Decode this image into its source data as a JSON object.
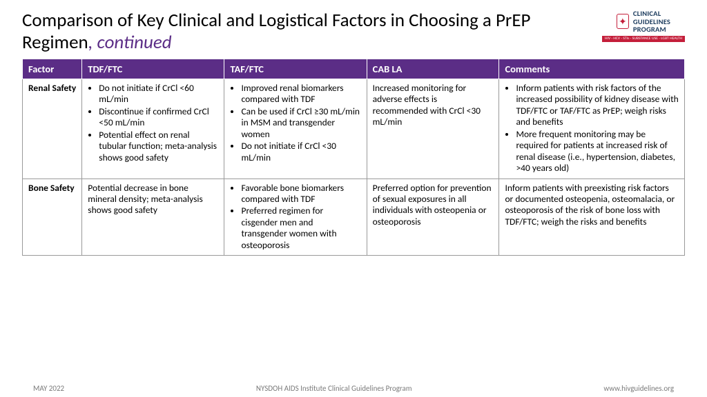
{
  "title_main": "Comparison of Key Clinical and Logistical Factors in Choosing a PrEP Regimen",
  "title_suffix": ", continued",
  "logo": {
    "line1": "CLINICAL",
    "line2": "GUIDELINES",
    "line3": "PROGRAM",
    "bar": "HIV · HCV · STIs · SUBSTANCE USE · LGBT HEALTH"
  },
  "columns": [
    "Factor",
    "TDF/FTC",
    "TAF/FTC",
    "CAB LA",
    "Comments"
  ],
  "col_widths": [
    "9%",
    "21.5%",
    "21.5%",
    "20%",
    "28%"
  ],
  "rows": [
    {
      "factor": "Renal Safety",
      "tdf": {
        "type": "list",
        "items": [
          "Do not initiate if CrCl <60 mL/min",
          "Discontinue if confirmed CrCl <50 mL/min",
          "Potential effect on renal tubular function; meta-analysis shows good safety"
        ]
      },
      "taf": {
        "type": "list",
        "items": [
          "Improved renal biomarkers compared with TDF",
          "Can be used if CrCl ≥30 mL/min in MSM and transgender women",
          "Do not initiate if CrCl <30 mL/min"
        ]
      },
      "cab": {
        "type": "text",
        "text": "Increased monitoring for adverse effects is recommended with CrCl <30 mL/min"
      },
      "comments": {
        "type": "list",
        "items": [
          "Inform patients with risk factors of the increased possibility of kidney disease with TDF/FTC or TAF/FTC as PrEP; weigh risks and benefits",
          "More frequent monitoring may be required for patients at increased risk of renal disease (i.e., hypertension, diabetes, >40 years old)"
        ]
      }
    },
    {
      "factor": "Bone Safety",
      "tdf": {
        "type": "text",
        "text": "Potential decrease in bone mineral density; meta-analysis shows good safety"
      },
      "taf": {
        "type": "list",
        "items": [
          "Favorable bone biomarkers compared with TDF",
          "Preferred regimen for cisgender men and transgender women with osteoporosis"
        ]
      },
      "cab": {
        "type": "text",
        "text": "Preferred option for prevention of sexual exposures in all individuals with osteopenia or osteoporosis"
      },
      "comments": {
        "type": "text",
        "text": "Inform patients with preexisting risk factors or documented osteopenia, osteomalacia, or osteoporosis of the risk of bone loss with TDF/FTC; weigh the risks and benefits"
      }
    }
  ],
  "footer": {
    "left": "MAY 2022",
    "center": "NYSDOH AIDS Institute Clinical Guidelines Program",
    "right": "www.hivguidelines.org"
  },
  "colors": {
    "header_bg": "#5b2d86",
    "accent": "#5b2d86",
    "border": "#999999",
    "footer_text": "#7a7a7a",
    "logo_red": "#c41e3a",
    "logo_blue": "#1a3a5c"
  }
}
